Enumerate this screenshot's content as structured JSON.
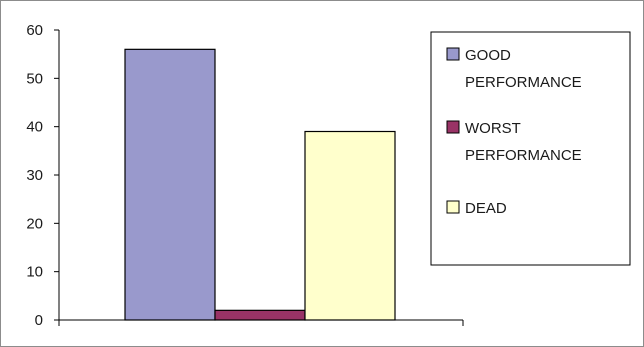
{
  "chart_data": {
    "type": "bar",
    "title": "",
    "xlabel": "",
    "ylabel": "",
    "ylim": [
      0,
      60
    ],
    "yticks": [
      0,
      10,
      20,
      30,
      40,
      50,
      60
    ],
    "grid": false,
    "legend_position": "right",
    "series": [
      {
        "name": "GOOD PERFORMANCE",
        "legend_lines": [
          "GOOD",
          "PERFORMANCE"
        ],
        "value": 56,
        "color": "#9999cc"
      },
      {
        "name": "WORST PERFORMANCE",
        "legend_lines": [
          "WORST",
          "PERFORMANCE"
        ],
        "value": 2,
        "color": "#993366"
      },
      {
        "name": "DEAD",
        "legend_lines": [
          "DEAD"
        ],
        "value": 39,
        "color": "#ffffcc"
      }
    ]
  }
}
